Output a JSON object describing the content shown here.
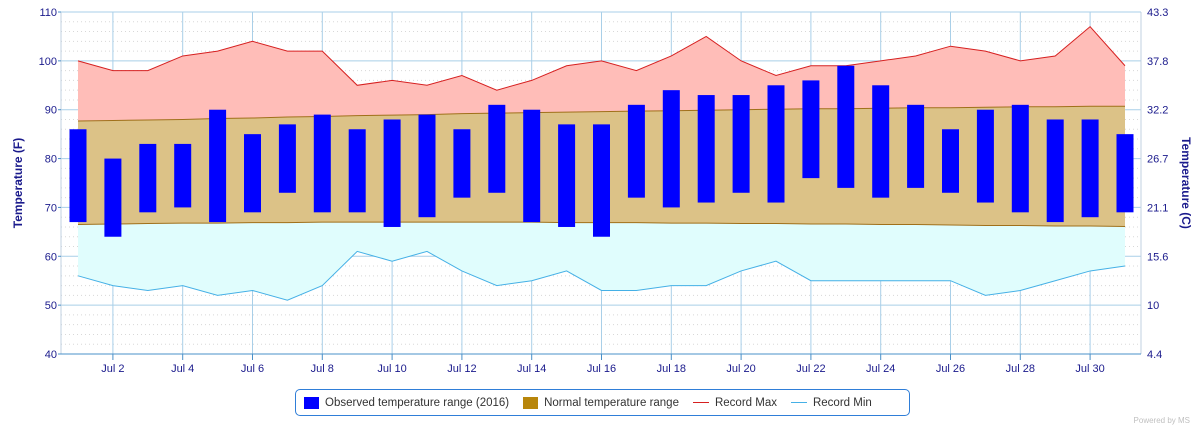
{
  "chart_data": {
    "type": "bar",
    "title": "",
    "ylabel_left": "Temperature (F)",
    "ylabel_right": "Temperature (C)",
    "ylim": [
      40,
      110
    ],
    "y_ticks_left": [
      "40",
      "50",
      "60",
      "70",
      "80",
      "90",
      "100",
      "110"
    ],
    "y_ticks_right": [
      "4.4",
      "10",
      "15.6",
      "21.1",
      "26.7",
      "32.2",
      "37.8",
      "43.3"
    ],
    "x_tick_labels": [
      "Jul 2",
      "Jul 4",
      "Jul 6",
      "Jul 8",
      "Jul 10",
      "Jul 12",
      "Jul 14",
      "Jul 16",
      "Jul 18",
      "Jul 20",
      "Jul 22",
      "Jul 24",
      "Jul 26",
      "Jul 28",
      "Jul 30"
    ],
    "x_tick_days": [
      2,
      4,
      6,
      8,
      10,
      12,
      14,
      16,
      18,
      20,
      22,
      24,
      26,
      28,
      30
    ],
    "days": [
      1,
      2,
      3,
      4,
      5,
      6,
      7,
      8,
      9,
      10,
      11,
      12,
      13,
      14,
      15,
      16,
      17,
      18,
      19,
      20,
      21,
      22,
      23,
      24,
      25,
      26,
      27,
      28,
      29,
      30,
      31
    ],
    "grid": true,
    "legend_placement": "bottom-center",
    "series": [
      {
        "name": "Observed temperature range (2016)",
        "kind": "range-bar",
        "color": "#0000ff",
        "low": [
          67,
          64,
          69,
          70,
          67,
          69,
          73,
          69,
          69,
          66,
          68,
          72,
          73,
          67,
          66,
          64,
          72,
          70,
          71,
          73,
          71,
          76,
          74,
          72,
          74,
          73,
          71,
          69,
          67,
          68,
          69
        ],
        "high": [
          86,
          80,
          83,
          83,
          90,
          85,
          87,
          89,
          86,
          88,
          89,
          86,
          91,
          90,
          87,
          87,
          91,
          94,
          93,
          93,
          95,
          96,
          99,
          95,
          91,
          86,
          90,
          91,
          88,
          88,
          85
        ]
      },
      {
        "name": "Normal temperature range",
        "kind": "range-area",
        "color": "#b8860b",
        "low": [
          66.5,
          66.6,
          66.7,
          66.8,
          66.8,
          66.9,
          66.9,
          67.0,
          67.0,
          67.0,
          67.0,
          67.0,
          67.0,
          67.0,
          66.9,
          66.9,
          66.9,
          66.8,
          66.8,
          66.7,
          66.7,
          66.6,
          66.6,
          66.5,
          66.5,
          66.4,
          66.3,
          66.3,
          66.2,
          66.2,
          66.1
        ],
        "high": [
          87.7,
          87.8,
          87.9,
          88.0,
          88.2,
          88.3,
          88.5,
          88.6,
          88.8,
          88.9,
          89.0,
          89.2,
          89.3,
          89.4,
          89.5,
          89.6,
          89.7,
          89.8,
          89.9,
          90.0,
          90.1,
          90.2,
          90.2,
          90.3,
          90.4,
          90.4,
          90.5,
          90.6,
          90.6,
          90.7,
          90.7
        ]
      },
      {
        "name": "Record Max",
        "kind": "line",
        "color": "#d62020",
        "values": [
          100,
          98,
          98,
          101,
          102,
          104,
          102,
          102,
          95,
          96,
          95,
          97,
          94,
          96,
          99,
          100,
          98,
          101,
          105,
          100,
          97,
          99,
          99,
          100,
          101,
          103,
          102,
          100,
          101,
          107,
          99
        ]
      },
      {
        "name": "Record Min",
        "kind": "line",
        "color": "#45b0e6",
        "values": [
          56,
          54,
          53,
          54,
          52,
          53,
          51,
          54,
          61,
          59,
          61,
          57,
          54,
          55,
          57,
          53,
          53,
          54,
          54,
          57,
          59,
          55,
          55,
          55,
          55,
          55,
          52,
          53,
          55,
          57,
          58
        ]
      }
    ]
  },
  "colors": {
    "record_max_fill": "#ffbdb8",
    "record_min_fill": "#e0fdfd",
    "normal_fill": "#dcc287",
    "normal_border": "#a0701a",
    "axis_text": "#1a1a8c",
    "grid": "#a9cfe8"
  },
  "footer_credit": "Powered by MS"
}
